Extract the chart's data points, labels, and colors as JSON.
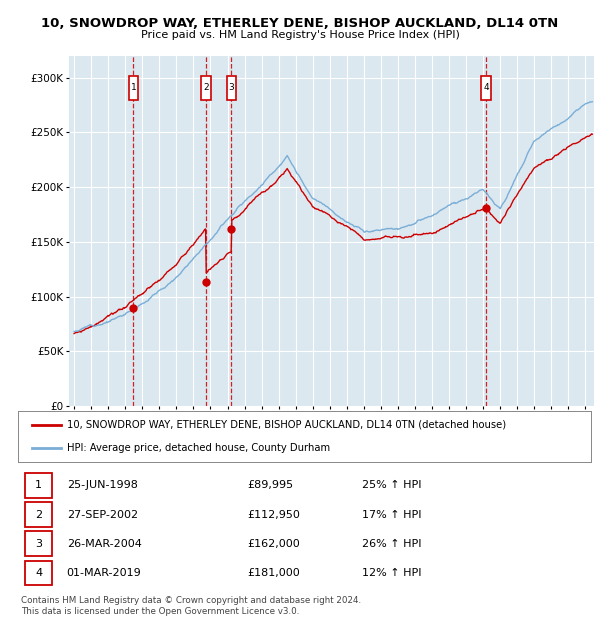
{
  "title1": "10, SNOWDROP WAY, ETHERLEY DENE, BISHOP AUCKLAND, DL14 0TN",
  "title2": "Price paid vs. HM Land Registry's House Price Index (HPI)",
  "background_color": "#ffffff",
  "plot_bg_color": "#dce8f0",
  "grid_color": "#ffffff",
  "line1_color": "#cc0000",
  "line2_color": "#7aaed6",
  "transactions": [
    {
      "num": 1,
      "date_x": 1998.48,
      "price": 89995,
      "pct": "25%",
      "date_str": "25-JUN-1998",
      "price_str": "£89,995"
    },
    {
      "num": 2,
      "date_x": 2002.74,
      "price": 112950,
      "pct": "17%",
      "date_str": "27-SEP-2002",
      "price_str": "£112,950"
    },
    {
      "num": 3,
      "date_x": 2004.23,
      "price": 162000,
      "pct": "26%",
      "date_str": "26-MAR-2004",
      "price_str": "£162,000"
    },
    {
      "num": 4,
      "date_x": 2019.17,
      "price": 181000,
      "pct": "12%",
      "date_str": "01-MAR-2019",
      "price_str": "£181,000"
    }
  ],
  "legend1": "10, SNOWDROP WAY, ETHERLEY DENE, BISHOP AUCKLAND, DL14 0TN (detached house)",
  "legend2": "HPI: Average price, detached house, County Durham",
  "footnote": "Contains HM Land Registry data © Crown copyright and database right 2024.\nThis data is licensed under the Open Government Licence v3.0.",
  "ylim": [
    0,
    320000
  ],
  "xlim_start": 1994.7,
  "xlim_end": 2025.5,
  "yticks": [
    0,
    50000,
    100000,
    150000,
    200000,
    250000,
    300000
  ],
  "ylabels": [
    "£0",
    "£50K",
    "£100K",
    "£150K",
    "£200K",
    "£250K",
    "£300K"
  ]
}
